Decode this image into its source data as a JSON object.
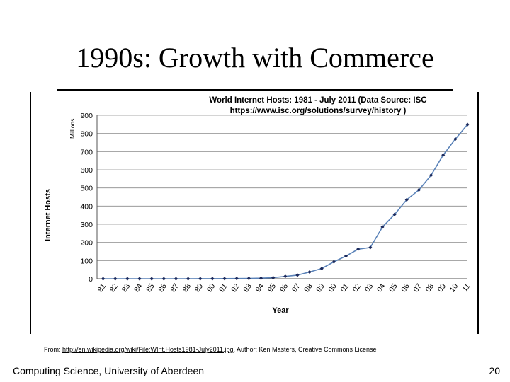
{
  "slide": {
    "title": "1990s: Growth with Commerce",
    "source_prefix": "From: ",
    "source_link": "http://en.wikipedia.org/wiki/File:WInt.Hosts1981-July2011.jpg",
    "source_suffix": ", Author: Ken Masters, Creative Commons License",
    "footer_left": "Computing Science, University of Aberdeen",
    "page_number": "20"
  },
  "chart_data": {
    "type": "line",
    "title_line1": "World Internet Hosts: 1981 - July 2011 (Data Source: ISC",
    "title_line2": "https://www.isc.org/solutions/survey/history )",
    "ylabel": "Internet Hosts",
    "unit_label": "Millions",
    "xlabel": "Year",
    "ylim": [
      0,
      900
    ],
    "y_ticks": [
      0,
      100,
      200,
      300,
      400,
      500,
      600,
      700,
      800,
      900
    ],
    "grid": true,
    "legend": "none",
    "line_color": "#5a82b8",
    "marker_color": "#1c2a5c",
    "categories": [
      "81",
      "82",
      "83",
      "84",
      "85",
      "86",
      "87",
      "88",
      "89",
      "90",
      "91",
      "92",
      "93",
      "94",
      "95",
      "96",
      "97",
      "98",
      "99",
      "00",
      "01",
      "02",
      "03",
      "04",
      "05",
      "06",
      "07",
      "08",
      "09",
      "10",
      "11"
    ],
    "values": [
      0,
      0,
      0,
      0,
      0,
      0,
      0,
      0,
      0.2,
      0.4,
      0.7,
      1.3,
      2,
      3,
      6,
      13,
      20,
      37,
      56,
      93,
      125,
      163,
      172,
      285,
      354,
      435,
      489,
      570,
      681,
      769,
      849
    ]
  }
}
